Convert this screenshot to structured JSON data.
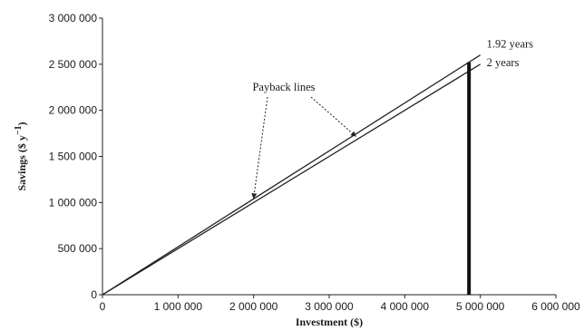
{
  "chart_data": {
    "type": "line",
    "xlabel": "Investment ($)",
    "ylabel": "Savings ($ y",
    "ylabel_sup": "−1",
    "ylabel_close": ")",
    "xlim": [
      0,
      6000000
    ],
    "ylim": [
      0,
      3000000
    ],
    "x_ticks": [
      0,
      1000000,
      2000000,
      3000000,
      4000000,
      5000000,
      6000000
    ],
    "x_tick_labels": [
      "0",
      "1 000 000",
      "2 000 000",
      "3 000 000",
      "4 000 000",
      "5 000 000",
      "6 000 000"
    ],
    "y_ticks": [
      0,
      500000,
      1000000,
      1500000,
      2000000,
      2500000,
      3000000
    ],
    "y_tick_labels": [
      "0",
      "500 000",
      "1 000 000",
      "1 500 000",
      "2 000 000",
      "2 500 000",
      "3 000 000"
    ],
    "grid": false,
    "series": [
      {
        "name": "1.92 years",
        "x": [
          0,
          5000000
        ],
        "y": [
          0,
          2600000
        ]
      },
      {
        "name": "2 years",
        "x": [
          0,
          5000000
        ],
        "y": [
          0,
          2500000
        ]
      }
    ],
    "vertical_line": {
      "x": 4850000,
      "y": [
        0,
        2520000
      ]
    },
    "annotation": {
      "text": "Payback lines",
      "targets": [
        {
          "x": 2000000,
          "y": 1050000
        },
        {
          "x": 3350000,
          "y": 1720000
        }
      ]
    }
  }
}
